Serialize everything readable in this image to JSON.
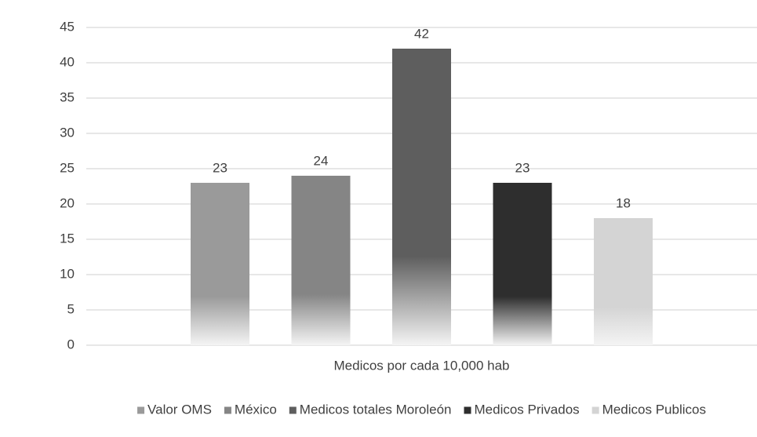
{
  "chart_data": {
    "type": "bar",
    "categories": [
      "Medicos por cada 10,000 hab"
    ],
    "series": [
      {
        "name": "Valor OMS",
        "color": "#9a9a9a",
        "values": [
          23
        ]
      },
      {
        "name": "México",
        "color": "#858585",
        "values": [
          24
        ]
      },
      {
        "name": "Medicos totales Moroleón",
        "color": "#5e5e5e",
        "values": [
          42
        ]
      },
      {
        "name": "Medicos Privados",
        "color": "#2e2e2e",
        "values": [
          23
        ]
      },
      {
        "name": "Medicos Publicos",
        "color": "#d4d4d4",
        "values": [
          18
        ]
      }
    ],
    "ylim": [
      0,
      45
    ],
    "yticks": [
      0,
      5,
      10,
      15,
      20,
      25,
      30,
      35,
      40,
      45
    ],
    "grid": true,
    "legend": "bottom"
  }
}
